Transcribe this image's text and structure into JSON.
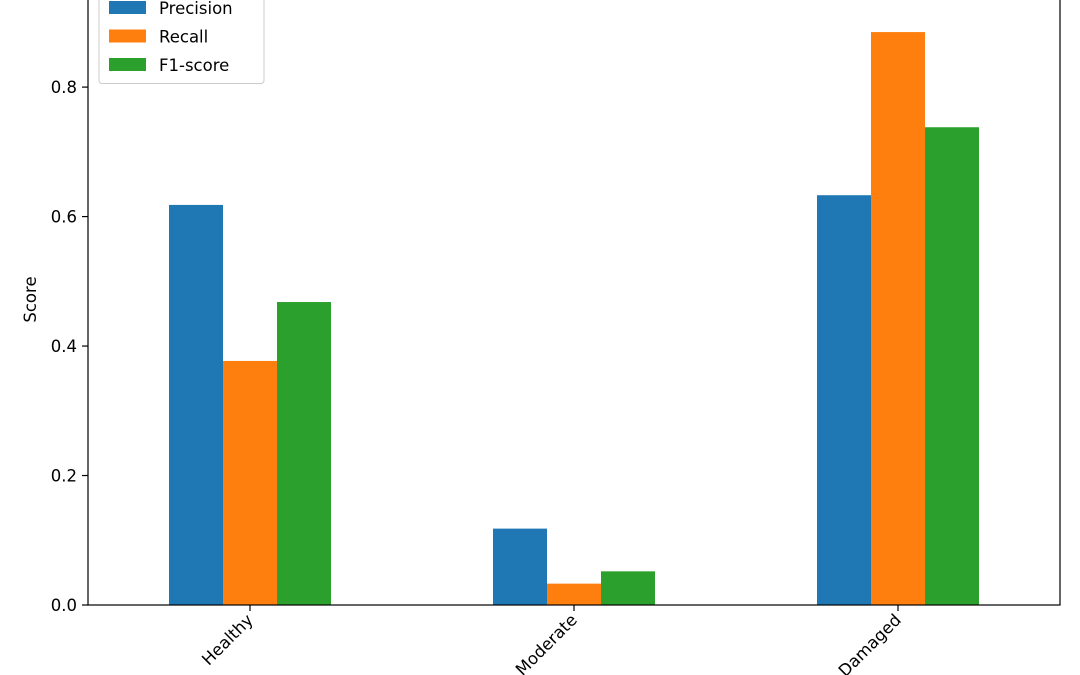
{
  "chart_data": {
    "type": "bar",
    "title": "",
    "xlabel": "",
    "ylabel": "Score",
    "categories": [
      "Healthy",
      "Moderate",
      "Damaged"
    ],
    "series": [
      {
        "name": "Precision",
        "color": "#1f77b4",
        "values": [
          0.618,
          0.118,
          0.633
        ]
      },
      {
        "name": "Recall",
        "color": "#ff7f0e",
        "values": [
          0.377,
          0.033,
          0.885
        ]
      },
      {
        "name": "F1-score",
        "color": "#2ca02c",
        "values": [
          0.468,
          0.052,
          0.738
        ]
      }
    ],
    "ylim": [
      0,
      0.95
    ],
    "yticks": [
      0.0,
      0.2,
      0.4,
      0.6,
      0.8
    ],
    "ytick_labels": [
      "0.0",
      "0.2",
      "0.4",
      "0.6",
      "0.8"
    ],
    "grid": false,
    "legend_position": "top-left",
    "xtick_rotation": 45
  }
}
